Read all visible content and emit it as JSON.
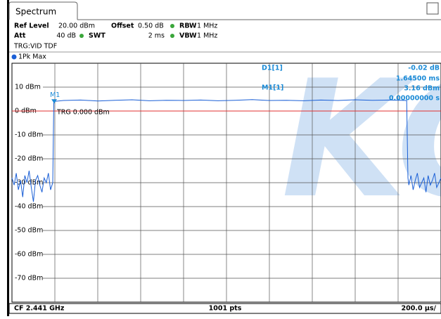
{
  "tab": "Spectrum",
  "header": {
    "ref_level_label": "Ref Level",
    "ref_level": "20.00 dBm",
    "offset_label": "Offset",
    "offset": "0.50 dB",
    "rbw_label": "RBW",
    "rbw": "1 MHz",
    "att_label": "Att",
    "att": "40 dB",
    "swt_label": "SWT",
    "swt": "2 ms",
    "vbw_label": "VBW",
    "vbw": "1 MHz",
    "trigger": "TRG:VID TDF"
  },
  "readout": {
    "d1_label": "D1[1]",
    "d1_value": "-0.02 dB",
    "d1_time": "1.64500 ms",
    "m1_label": "M1[1]",
    "m1_value": "3.16 dBm",
    "m1_time": "0.00000000 s"
  },
  "watermark": "KC",
  "footer": {
    "center_freq": "CF 2.441 GHz",
    "points": "1001 pts",
    "sweep_div": "200.0 µs/"
  },
  "chart_data": {
    "type": "line",
    "x": [
      0,
      10,
      20,
      30,
      40,
      50,
      60,
      70,
      80,
      90,
      100,
      110,
      120,
      130,
      140,
      150,
      160,
      170,
      180,
      190,
      195,
      240,
      320,
      400,
      480,
      560,
      640,
      720,
      800,
      880,
      960,
      1040,
      1120,
      1200,
      1280,
      1360,
      1440,
      1520,
      1600,
      1680,
      1760,
      1840,
      1846,
      1850,
      1860,
      1870,
      1880,
      1890,
      1900,
      1910,
      1920,
      1930,
      1940,
      1950,
      1960,
      1970,
      1980,
      1990,
      2000
    ],
    "series": [
      {
        "name": "1Pk Max",
        "color": "#1a5fd6",
        "values": [
          -28,
          -31,
          -26,
          -33,
          -29,
          -36,
          -27,
          -30,
          -25,
          -32,
          -38,
          -29,
          -27,
          -31,
          -34,
          -28,
          -30,
          -26,
          -33,
          -30,
          4.0,
          4.4,
          4.6,
          4.2,
          4.5,
          4.7,
          4.3,
          4.5,
          4.4,
          4.6,
          4.3,
          4.5,
          4.8,
          4.4,
          4.5,
          4.3,
          4.6,
          4.4,
          4.7,
          4.5,
          4.6,
          4.4,
          -28,
          -31,
          -27,
          -33,
          -29,
          -26,
          -32,
          -30,
          -28,
          -34,
          -27,
          -31,
          -29,
          -26,
          -32,
          -30,
          -28
        ]
      }
    ],
    "xlim": [
      0,
      2000
    ],
    "xticks": [
      200,
      400,
      600,
      800,
      1000,
      1200,
      1400,
      1600,
      1800
    ],
    "ylim": [
      -80,
      20
    ],
    "yticks": [
      {
        "value": 10,
        "label": "10 dBm"
      },
      {
        "value": 0,
        "label": "0 dBm"
      },
      {
        "value": -10,
        "label": "-10 dBm"
      },
      {
        "value": -20,
        "label": "-20 dBm"
      },
      {
        "value": -30,
        "label": "-30 dBm"
      },
      {
        "value": -40,
        "label": "-40 dBm"
      },
      {
        "value": -50,
        "label": "-50 dBm"
      },
      {
        "value": -60,
        "label": "-60 dBm"
      },
      {
        "value": -70,
        "label": "-70 dBm"
      }
    ],
    "grid": true,
    "trigger": {
      "value": 0,
      "label": "TRG 0.000 dBm",
      "color": "#e03030"
    },
    "markers": [
      {
        "label": "M1",
        "x": 197,
        "y": 3.16
      }
    ]
  }
}
